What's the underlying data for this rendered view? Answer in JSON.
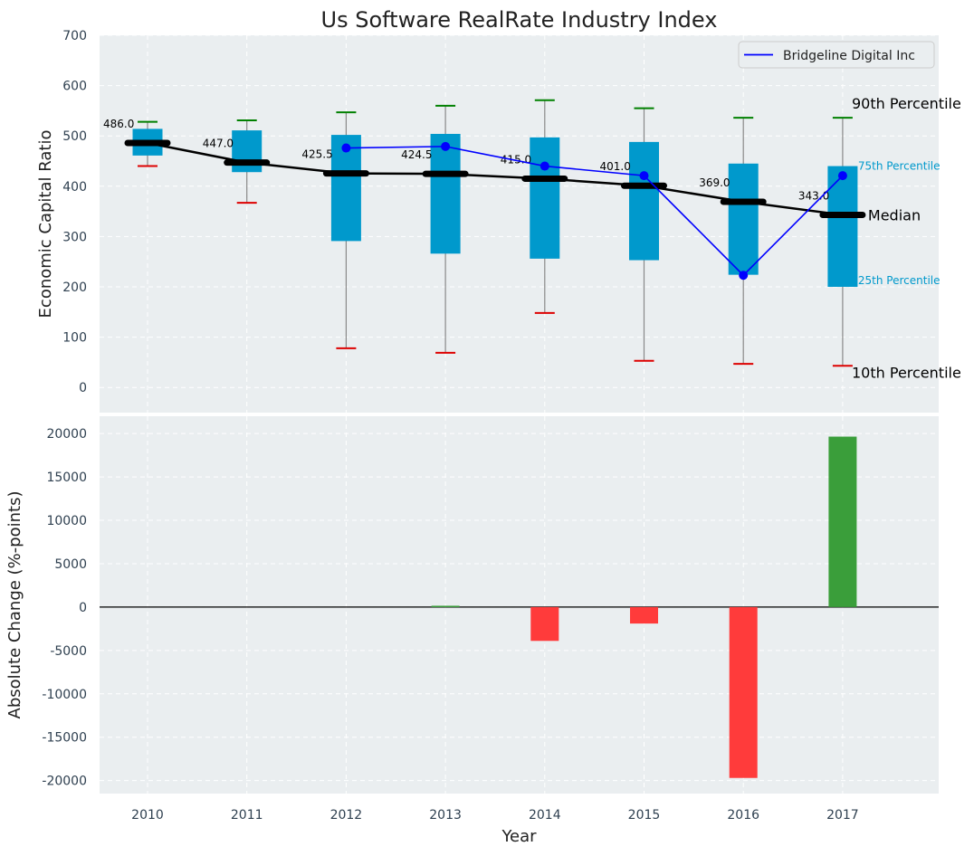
{
  "chart_data": [
    {
      "type": "box",
      "title": "Us Software RealRate Industry Index",
      "ylabel": "Economic Capital Ratio",
      "ylim": [
        -50,
        700
      ],
      "yticks": [
        0,
        100,
        200,
        300,
        400,
        500,
        600,
        700
      ],
      "grid": true,
      "legend": {
        "position": "top-right",
        "entries": [
          "Bridgeline Digital Inc"
        ]
      },
      "categories": [
        "2010",
        "2011",
        "2012",
        "2013",
        "2014",
        "2015",
        "2016",
        "2017"
      ],
      "p10": [
        440,
        367,
        78,
        69,
        148,
        53,
        47,
        43
      ],
      "p25": [
        461,
        428,
        291,
        266,
        256,
        253,
        224,
        200
      ],
      "median": [
        486.0,
        447.0,
        425.5,
        424.5,
        415.0,
        401.0,
        369.0,
        343.0
      ],
      "median_labels": [
        "486.0",
        "447.0",
        "425.5",
        "424.5",
        "415.0",
        "401.0",
        "369.0",
        "343.0"
      ],
      "p75": [
        514,
        511,
        502,
        504,
        497,
        488,
        445,
        440
      ],
      "p90": [
        528,
        531,
        547,
        560,
        571,
        555,
        536,
        536
      ],
      "company_series": {
        "name": "Bridgeline Digital Inc",
        "color": "#0000ff",
        "x": [
          "2012",
          "2013",
          "2014",
          "2015",
          "2016",
          "2017"
        ],
        "values": [
          476,
          479,
          440,
          421,
          223,
          421
        ]
      },
      "annotations": {
        "p90": "90th Percentile",
        "p75": "75th Percentile",
        "median": "Median",
        "p25": "25th Percentile",
        "p10": "10th Percentile"
      },
      "colors": {
        "box": "#0099cc",
        "median": "#000000",
        "p90_cap": "#008000",
        "p10_cap": "#dd0000",
        "annotation_small": "#0099cc"
      }
    },
    {
      "type": "bar",
      "ylabel": "Absolute Change (%-points)",
      "xlabel": "Year",
      "ylim": [
        -21500,
        22000
      ],
      "yticks": [
        -20000,
        -15000,
        -10000,
        -5000,
        0,
        5000,
        10000,
        15000,
        20000
      ],
      "grid": true,
      "categories": [
        "2010",
        "2011",
        "2012",
        "2013",
        "2014",
        "2015",
        "2016",
        "2017"
      ],
      "values": [
        0,
        0,
        0,
        150,
        -3900,
        -1900,
        -19700,
        19650
      ],
      "colors": {
        "positive": "#3a9e3a",
        "negative": "#ff3b3b"
      }
    }
  ]
}
